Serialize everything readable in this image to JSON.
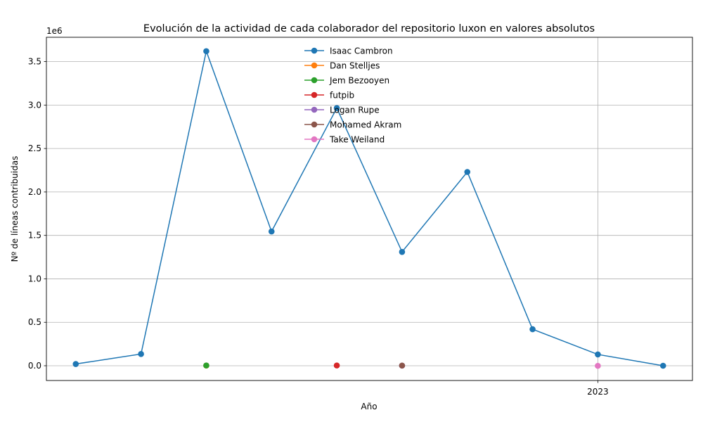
{
  "chart_data": {
    "type": "line",
    "title": "Evolución de la actividad de cada colaborador del repositorio luxon en valores absolutos",
    "xlabel": "Año",
    "ylabel": "Nº de líneas contribuidas",
    "y_offset_label": "1e6",
    "x_tick_labels": [
      {
        "x": 2023,
        "label": "2023"
      }
    ],
    "y_ticks": [
      0.0,
      0.5,
      1.0,
      1.5,
      2.0,
      2.5,
      3.0,
      3.5
    ],
    "y_tick_labels": [
      "0.0",
      "0.5",
      "1.0",
      "1.5",
      "2.0",
      "2.5",
      "3.0",
      "3.5"
    ],
    "xlim": [
      2014.55,
      2024.45
    ],
    "ylim": [
      -170000,
      3780000
    ],
    "grid": true,
    "legend_position": "upper center",
    "series": [
      {
        "name": "Isaac Cambron",
        "color": "#1f77b4",
        "x": [
          2015,
          2016,
          2017,
          2018,
          2019,
          2020,
          2021,
          2022,
          2023,
          2024
        ],
        "y": [
          20000,
          135000,
          3620000,
          1545000,
          2965000,
          1310000,
          2230000,
          420000,
          130000,
          0
        ]
      },
      {
        "name": "Dan Stelljes",
        "color": "#ff7f0e",
        "x": [
          2017
        ],
        "y": [
          2000
        ]
      },
      {
        "name": "Jem Bezooyen",
        "color": "#2ca02c",
        "x": [
          2017
        ],
        "y": [
          3000
        ]
      },
      {
        "name": "futpib",
        "color": "#d62728",
        "x": [
          2019
        ],
        "y": [
          3000
        ]
      },
      {
        "name": "Logan Rupe",
        "color": "#9467bd",
        "x": [
          2020
        ],
        "y": [
          1000
        ]
      },
      {
        "name": "Mohamed Akram",
        "color": "#8c564b",
        "x": [
          2020
        ],
        "y": [
          2000
        ]
      },
      {
        "name": "Take Weiland",
        "color": "#e377c2",
        "x": [
          2023
        ],
        "y": [
          -1000
        ]
      }
    ]
  }
}
